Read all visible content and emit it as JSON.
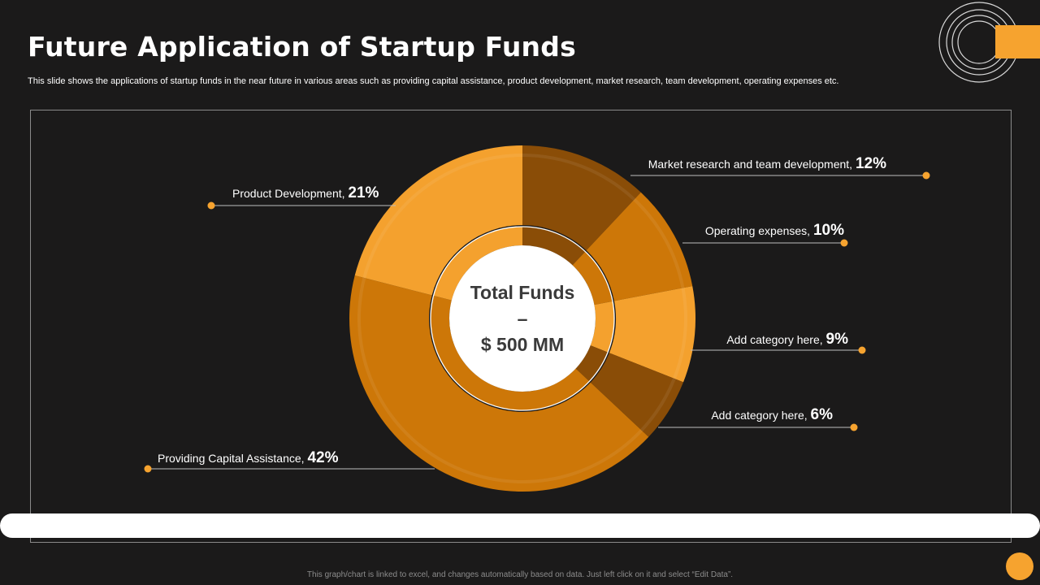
{
  "slide": {
    "title": "Future Application of Startup Funds",
    "subtitle": "This slide shows the applications of startup funds in the near future in various areas such as providing capital assistance, product development,  market research, team development,  operating expenses etc.",
    "footer_note": "This graph/chart is linked to excel, and changes automatically based on data. Just left click on it and select “Edit Data”."
  },
  "center": {
    "line1": "Total Funds",
    "line2": "–",
    "line3": "$ 500 MM"
  },
  "colors": {
    "background": "#1b1a1a",
    "accent": "#f6a32f",
    "slice_dark": "#8a4d07",
    "slice_mid": "#cd7708",
    "slice_light": "#f4a12e"
  },
  "chart_data": {
    "type": "pie",
    "variant": "donut",
    "unit": "%",
    "categories": [
      "Market research and team development",
      "Operating expenses",
      "Add category here",
      "Add category here",
      "Providing Capital Assistance",
      "Product Development"
    ],
    "values": [
      12,
      10,
      9,
      6,
      42,
      21
    ],
    "labels": [
      {
        "name": "Market research and team development,",
        "value": "12%",
        "side": "right"
      },
      {
        "name": "Operating expenses,",
        "value": "10%",
        "side": "right"
      },
      {
        "name": "Add category here,",
        "value": "9%",
        "side": "right"
      },
      {
        "name": "Add category here,",
        "value": "6%",
        "side": "right"
      },
      {
        "name": "Providing Capital Assistance,",
        "value": "42%",
        "side": "left"
      },
      {
        "name": "Product Development,",
        "value": "21%",
        "side": "left"
      }
    ],
    "slice_colors": [
      "#8a4d07",
      "#cd7708",
      "#f4a12e",
      "#8a4d07",
      "#cd7708",
      "#f4a12e"
    ],
    "start_angle": "12 o'clock",
    "direction": "clockwise"
  }
}
